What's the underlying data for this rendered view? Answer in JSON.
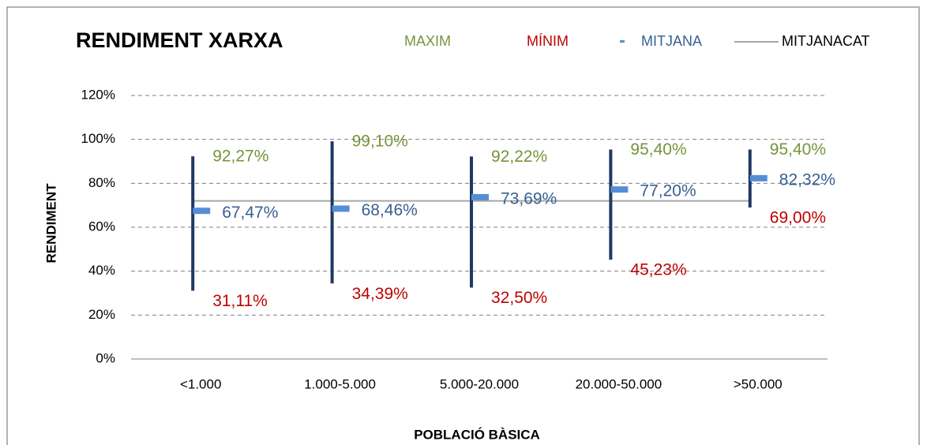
{
  "chart_data": {
    "type": "high-low",
    "title": "RENDIMENT XARXA",
    "x_label": "POBLACIÓ BÀSICA",
    "y_label": "RENDIMENT",
    "categories": [
      "<1.000",
      "1.000-5.000",
      "5.000-20.000",
      "20.000-50.000",
      ">50.000"
    ],
    "ylim": [
      0,
      120
    ],
    "yticks": [
      {
        "value": 0,
        "label": "0%"
      },
      {
        "value": 20,
        "label": "20%"
      },
      {
        "value": 40,
        "label": "40%"
      },
      {
        "value": 60,
        "label": "60%"
      },
      {
        "value": 80,
        "label": "80%"
      },
      {
        "value": 100,
        "label": "100%"
      },
      {
        "value": 120,
        "label": "120%"
      }
    ],
    "grid": true,
    "line_color": "#1f3864",
    "series": [
      {
        "name": "MAXIM",
        "role": "high",
        "color": "#77933c",
        "values": [
          92.27,
          99.1,
          92.22,
          95.4,
          95.4
        ],
        "value_labels": [
          "92,27%",
          "99,10%",
          "92,22%",
          "95,40%",
          "95,40%"
        ]
      },
      {
        "name": "MÍNIM",
        "role": "low",
        "color": "#c00000",
        "values": [
          31.11,
          34.39,
          32.5,
          45.23,
          69.0
        ],
        "value_labels": [
          "31,11%",
          "34,39%",
          "32,50%",
          "45,23%",
          "69,00%"
        ]
      },
      {
        "name": "MITJANA",
        "role": "mean",
        "color": "#558ed5",
        "label_color": "#376092",
        "values": [
          67.47,
          68.46,
          73.69,
          77.2,
          82.32
        ],
        "value_labels": [
          "67,47%",
          "68,46%",
          "73,69%",
          "77,20%",
          "82,32%"
        ]
      },
      {
        "name": "MITJANACAT",
        "role": "line",
        "color": "#a6a6a6",
        "values": [
          72,
          72,
          72,
          72,
          72
        ]
      }
    ]
  }
}
